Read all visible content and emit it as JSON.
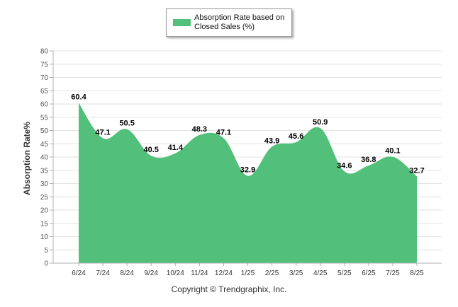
{
  "chart_data": {
    "type": "area",
    "categories": [
      "6/24",
      "7/24",
      "8/24",
      "9/24",
      "10/24",
      "11/24",
      "12/24",
      "1/25",
      "2/25",
      "3/25",
      "4/25",
      "5/25",
      "6/25",
      "7/25",
      "8/25"
    ],
    "series": [
      {
        "name": "Absorption Rate based on Closed Sales (%)",
        "values": [
          60.4,
          47.1,
          50.5,
          40.5,
          41.4,
          48.3,
          47.1,
          32.9,
          43.9,
          45.6,
          50.9,
          34.6,
          36.8,
          40.1,
          32.7
        ],
        "color": "#52bf7b"
      }
    ],
    "ylabel": "Absorption Rate%",
    "xlabel": "",
    "ylim": [
      0,
      80
    ],
    "yticks": [
      "0",
      "5",
      "10",
      "15",
      "20",
      "25",
      "30",
      "35",
      "40",
      "45",
      "50",
      "55",
      "60",
      "65",
      "70",
      "75",
      "80"
    ],
    "data_labels": [
      "60.4",
      "47.1",
      "50.5",
      "40.5",
      "41.4",
      "48.3",
      "47.1",
      "32.9",
      "43.9",
      "45.6",
      "50.9",
      "34.6",
      "36.8",
      "40.1",
      "32.7"
    ],
    "grid": true,
    "legend_position": "top-center"
  },
  "copyright": "Copyright © Trendgraphix, Inc."
}
